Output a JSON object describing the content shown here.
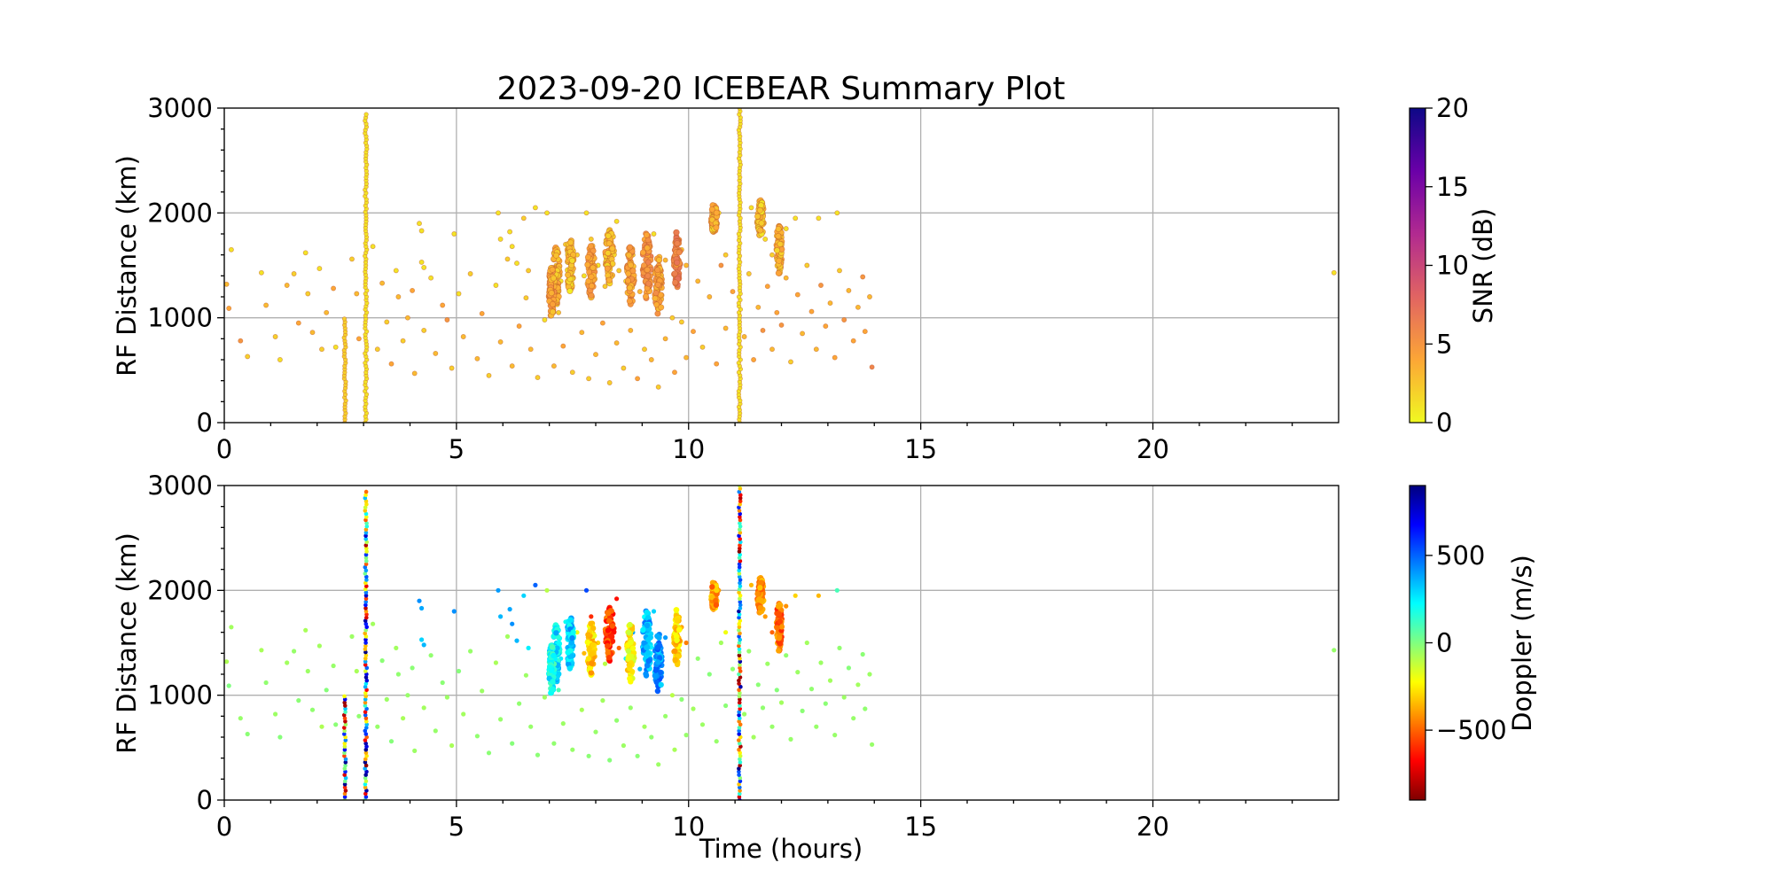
{
  "figure_title": "2023-09-20 ICEBEAR Summary Plot",
  "chart_data": [
    {
      "type": "scatter",
      "title": "2023-09-20 ICEBEAR Summary Plot",
      "xlabel": "",
      "ylabel": "RF Distance (km)",
      "xlim": [
        0,
        24
      ],
      "ylim": [
        0,
        3000
      ],
      "xticks": [
        0,
        5,
        10,
        15,
        20
      ],
      "yticks": [
        0,
        1000,
        2000,
        3000
      ],
      "grid": true,
      "color_by": "snr",
      "colorbar": {
        "label": "SNR (dB)",
        "range": [
          0,
          20
        ],
        "ticks": [
          0,
          5,
          10,
          15,
          20
        ],
        "colormap": "plasma_r",
        "stops": [
          "#f0f921",
          "#fca636",
          "#e16462",
          "#b12a90",
          "#6a00a8",
          "#0d0887"
        ]
      }
    },
    {
      "type": "scatter",
      "title": "",
      "xlabel": "Time (hours)",
      "ylabel": "RF Distance (km)",
      "xlim": [
        0,
        24
      ],
      "ylim": [
        0,
        3000
      ],
      "xticks": [
        0,
        5,
        10,
        15,
        20
      ],
      "yticks": [
        0,
        1000,
        2000,
        3000
      ],
      "grid": true,
      "color_by": "doppler",
      "colorbar": {
        "label": "Doppler (m/s)",
        "range": [
          -900,
          900
        ],
        "ticks": [
          -500,
          0,
          500
        ],
        "tick_labels": [
          "−500",
          "0",
          "500"
        ],
        "colormap": "jet_r",
        "stops": [
          "#7f0000",
          "#ff0000",
          "#ff7f00",
          "#ffff00",
          "#80ff80",
          "#00ffff",
          "#007fff",
          "#0000ff",
          "#00007f"
        ]
      }
    }
  ],
  "echo_data": {
    "columns": [
      "time_hours",
      "rf_distance_km",
      "snr_db",
      "doppler_ms"
    ],
    "points": [
      [
        0.05,
        1320,
        3,
        -80
      ],
      [
        0.15,
        1650,
        1,
        -60
      ],
      [
        0.1,
        1090,
        4,
        0
      ],
      [
        0.35,
        780,
        5,
        -40
      ],
      [
        0.5,
        630,
        2,
        -20
      ],
      [
        0.8,
        1430,
        1,
        -70
      ],
      [
        0.9,
        1120,
        3,
        -30
      ],
      [
        1.1,
        820,
        2,
        -50
      ],
      [
        1.2,
        600,
        1,
        -10
      ],
      [
        1.35,
        1310,
        3,
        -60
      ],
      [
        1.5,
        1420,
        2,
        -40
      ],
      [
        1.6,
        950,
        4,
        -20
      ],
      [
        1.75,
        1620,
        1,
        -70
      ],
      [
        1.8,
        1230,
        2,
        -50
      ],
      [
        1.9,
        860,
        3,
        -30
      ],
      [
        2.05,
        1470,
        1,
        -60
      ],
      [
        2.1,
        700,
        2,
        -80
      ],
      [
        2.2,
        1050,
        3,
        -10
      ],
      [
        2.35,
        1280,
        4,
        -40
      ],
      [
        2.4,
        720,
        1,
        -20
      ],
      [
        2.75,
        1560,
        2,
        -50
      ],
      [
        2.85,
        1230,
        3,
        -70
      ],
      [
        2.9,
        800,
        4,
        -30
      ],
      [
        3.2,
        1680,
        1,
        -60
      ],
      [
        3.3,
        700,
        2,
        -40
      ],
      [
        3.4,
        1330,
        3,
        -20
      ],
      [
        3.5,
        960,
        2,
        -50
      ],
      [
        3.6,
        560,
        4,
        -10
      ],
      [
        3.7,
        1450,
        1,
        -60
      ],
      [
        3.75,
        1200,
        3,
        -30
      ],
      [
        3.85,
        780,
        2,
        -70
      ],
      [
        3.95,
        1000,
        3,
        -40
      ],
      [
        4.05,
        1260,
        4,
        -20
      ],
      [
        4.1,
        470,
        3,
        -50
      ],
      [
        4.3,
        880,
        2,
        -60
      ],
      [
        4.45,
        1380,
        1,
        -30
      ],
      [
        4.55,
        660,
        3,
        -40
      ],
      [
        4.7,
        1120,
        4,
        -20
      ],
      [
        4.8,
        980,
        5,
        -50
      ],
      [
        4.9,
        520,
        2,
        -70
      ],
      [
        5.05,
        1230,
        1,
        -10
      ],
      [
        5.15,
        820,
        3,
        -60
      ],
      [
        5.3,
        1420,
        2,
        -40
      ],
      [
        5.45,
        610,
        3,
        -30
      ],
      [
        5.55,
        1040,
        4,
        -50
      ],
      [
        5.7,
        450,
        2,
        -20
      ],
      [
        5.85,
        1310,
        1,
        -70
      ],
      [
        5.95,
        770,
        3,
        -40
      ],
      [
        6.1,
        1560,
        2,
        -60
      ],
      [
        6.2,
        540,
        3,
        -10
      ],
      [
        6.35,
        920,
        4,
        -30
      ],
      [
        6.5,
        1190,
        2,
        -50
      ],
      [
        6.6,
        700,
        3,
        -40
      ],
      [
        6.75,
        430,
        2,
        -20
      ],
      [
        6.9,
        980,
        1,
        -60
      ],
      [
        7.1,
        540,
        3,
        -30
      ],
      [
        7.3,
        730,
        4,
        -50
      ],
      [
        7.5,
        480,
        2,
        -40
      ],
      [
        7.7,
        860,
        3,
        -70
      ],
      [
        7.85,
        420,
        2,
        -20
      ],
      [
        8.0,
        650,
        3,
        -40
      ],
      [
        8.15,
        950,
        4,
        -60
      ],
      [
        8.3,
        380,
        2,
        -10
      ],
      [
        8.45,
        760,
        3,
        -30
      ],
      [
        8.6,
        520,
        2,
        -50
      ],
      [
        8.75,
        880,
        3,
        -40
      ],
      [
        8.9,
        420,
        4,
        -20
      ],
      [
        9.05,
        700,
        2,
        -60
      ],
      [
        9.2,
        600,
        3,
        -30
      ],
      [
        9.35,
        340,
        2,
        -50
      ],
      [
        9.5,
        800,
        3,
        -40
      ],
      [
        9.7,
        480,
        4,
        -70
      ],
      [
        9.85,
        960,
        2,
        -20
      ],
      [
        9.95,
        620,
        3,
        -40
      ],
      [
        10.1,
        870,
        4,
        -60
      ],
      [
        10.2,
        1350,
        3,
        -30
      ],
      [
        10.3,
        720,
        2,
        -50
      ],
      [
        10.45,
        1200,
        3,
        -10
      ],
      [
        10.6,
        560,
        4,
        -40
      ],
      [
        10.7,
        1500,
        5,
        -60
      ],
      [
        10.8,
        900,
        3,
        -20
      ],
      [
        10.95,
        1250,
        4,
        -30
      ],
      [
        11.2,
        820,
        3,
        -50
      ],
      [
        11.3,
        1420,
        2,
        -40
      ],
      [
        11.4,
        600,
        4,
        -60
      ],
      [
        11.5,
        1100,
        3,
        -20
      ],
      [
        11.6,
        880,
        5,
        -30
      ],
      [
        11.7,
        1300,
        4,
        -50
      ],
      [
        11.8,
        700,
        3,
        -40
      ],
      [
        11.9,
        1050,
        4,
        -10
      ],
      [
        12.0,
        930,
        5,
        -60
      ],
      [
        12.1,
        1380,
        3,
        -30
      ],
      [
        12.2,
        580,
        2,
        -40
      ],
      [
        12.35,
        1220,
        4,
        -50
      ],
      [
        12.45,
        850,
        3,
        -20
      ],
      [
        12.55,
        1500,
        2,
        -60
      ],
      [
        12.65,
        1060,
        4,
        -30
      ],
      [
        12.75,
        700,
        3,
        -40
      ],
      [
        12.85,
        1310,
        5,
        -50
      ],
      [
        12.95,
        920,
        4,
        -20
      ],
      [
        13.05,
        1140,
        3,
        -60
      ],
      [
        13.15,
        620,
        4,
        -40
      ],
      [
        13.25,
        1450,
        2,
        -30
      ],
      [
        13.35,
        980,
        5,
        -50
      ],
      [
        13.45,
        1260,
        3,
        -10
      ],
      [
        13.55,
        780,
        4,
        -40
      ],
      [
        13.65,
        1100,
        3,
        -60
      ],
      [
        13.75,
        1390,
        5,
        -20
      ],
      [
        13.8,
        870,
        4,
        -30
      ],
      [
        13.9,
        1200,
        3,
        -50
      ],
      [
        13.95,
        530,
        6,
        -40
      ],
      [
        23.9,
        1430,
        1,
        -40
      ],
      [
        6.15,
        1820,
        1,
        380
      ],
      [
        6.2,
        1680,
        1,
        420
      ],
      [
        6.3,
        1520,
        1,
        350
      ],
      [
        6.45,
        1950,
        2,
        300
      ],
      [
        6.55,
        1450,
        2,
        250
      ],
      [
        7.05,
        1200,
        1,
        230
      ],
      [
        7.15,
        1500,
        2,
        300
      ],
      [
        7.25,
        1350,
        1,
        250
      ],
      [
        7.35,
        1700,
        2,
        200
      ],
      [
        7.2,
        1050,
        2,
        100
      ],
      [
        7.45,
        1300,
        1,
        180
      ],
      [
        7.6,
        1600,
        2,
        -200
      ],
      [
        7.75,
        1400,
        1,
        -350
      ],
      [
        7.9,
        1750,
        2,
        -600
      ],
      [
        8.05,
        1500,
        1,
        -300
      ],
      [
        8.2,
        1300,
        2,
        -100
      ],
      [
        8.35,
        1650,
        3,
        -700
      ],
      [
        8.5,
        1450,
        2,
        -500
      ],
      [
        8.65,
        1350,
        1,
        250
      ],
      [
        8.8,
        1600,
        2,
        400
      ],
      [
        8.95,
        1250,
        3,
        350
      ],
      [
        9.1,
        1450,
        2,
        450
      ],
      [
        9.25,
        1800,
        1,
        300
      ],
      [
        9.35,
        1150,
        2,
        200
      ],
      [
        9.5,
        1550,
        3,
        400
      ],
      [
        9.65,
        1000,
        2,
        -100
      ],
      [
        9.75,
        1350,
        1,
        -300
      ],
      [
        9.85,
        1650,
        2,
        -400
      ],
      [
        9.95,
        1500,
        3,
        -450
      ],
      [
        10.5,
        1900,
        1,
        -350
      ],
      [
        10.65,
        2000,
        1,
        -400
      ],
      [
        10.8,
        1600,
        2,
        -200
      ],
      [
        11.35,
        2050,
        1,
        -350
      ],
      [
        11.5,
        1900,
        2,
        -450
      ],
      [
        11.65,
        1750,
        1,
        -400
      ],
      [
        11.8,
        1600,
        2,
        -500
      ],
      [
        11.95,
        1450,
        1,
        -480
      ],
      [
        12.1,
        1850,
        1,
        -420
      ],
      [
        12.3,
        1950,
        1,
        -300
      ],
      [
        4.2,
        1900,
        1,
        420
      ],
      [
        4.25,
        1830,
        1,
        380
      ],
      [
        4.3,
        1480,
        1,
        350
      ],
      [
        4.25,
        1530,
        1,
        300
      ],
      [
        4.95,
        1800,
        1,
        420
      ],
      [
        5.9,
        2000,
        1,
        400
      ],
      [
        5.95,
        1750,
        1,
        350
      ],
      [
        6.7,
        2050,
        1,
        500
      ],
      [
        6.95,
        2000,
        1,
        -100
      ],
      [
        7.8,
        2000,
        1,
        550
      ],
      [
        8.45,
        1920,
        1,
        -650
      ],
      [
        12.8,
        1950,
        1,
        -350
      ],
      [
        13.2,
        2000,
        1,
        100
      ]
    ],
    "clusters": [
      [
        7.15,
        1400,
        0.08,
        180,
        3,
        250
      ],
      [
        7.05,
        1250,
        0.06,
        150,
        4,
        200
      ],
      [
        7.45,
        1500,
        0.07,
        170,
        2,
        300
      ],
      [
        7.9,
        1450,
        0.08,
        160,
        4,
        -300
      ],
      [
        8.3,
        1600,
        0.09,
        170,
        3,
        -550
      ],
      [
        8.75,
        1400,
        0.08,
        180,
        4,
        -250
      ],
      [
        9.1,
        1500,
        0.09,
        200,
        5,
        350
      ],
      [
        9.35,
        1300,
        0.08,
        180,
        4,
        400
      ],
      [
        9.75,
        1550,
        0.07,
        170,
        6,
        -300
      ],
      [
        10.55,
        1950,
        0.06,
        90,
        3,
        -400
      ],
      [
        11.55,
        1950,
        0.07,
        110,
        2,
        -450
      ],
      [
        11.95,
        1650,
        0.06,
        150,
        3,
        -480
      ]
    ],
    "columns_vertical": [
      [
        2.6,
        0,
        1000,
        2,
        0
      ],
      [
        3.05,
        0,
        2950,
        1,
        0
      ],
      [
        11.1,
        0,
        3000,
        1,
        0
      ]
    ]
  }
}
